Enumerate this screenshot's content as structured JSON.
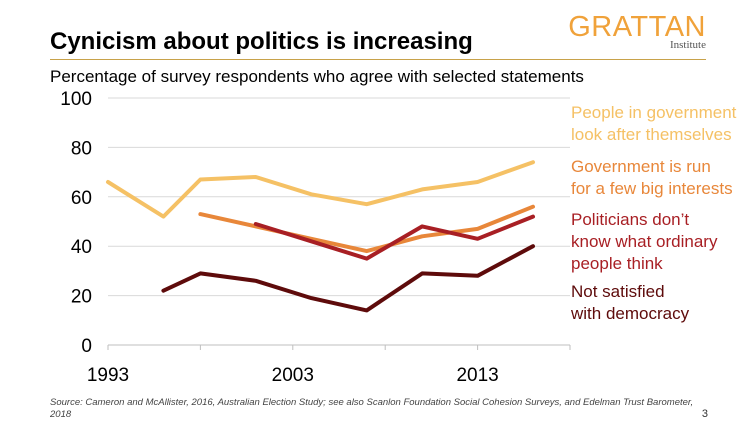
{
  "header": {
    "title": "Cynicism about politics is increasing",
    "subtitle": "Percentage of survey respondents who agree with selected statements",
    "logo_main": "GRATTAN",
    "logo_sub": "Institute"
  },
  "footer": {
    "source": "Source: Cameron and McAllister, 2016, Australian Election Study; see also Scanlon Foundation Social Cohesion Surveys, and Edelman Trust Barometer, 2018",
    "page_number": "3"
  },
  "chart_data": {
    "type": "line",
    "title": "Cynicism about politics is increasing",
    "subtitle": "Percentage of survey respondents who agree with selected statements",
    "xlim": [
      1993,
      2018
    ],
    "ylim": [
      0,
      100
    ],
    "x_ticks": [
      1993,
      2003,
      2013
    ],
    "y_ticks": [
      0,
      20,
      40,
      60,
      80,
      100
    ],
    "grid": "horizontal",
    "legend_placement": "right",
    "series": [
      {
        "name": "People in government look after themselves",
        "color": "#f5c165",
        "x": [
          1993,
          1996,
          1998,
          2001,
          2004,
          2007,
          2010,
          2013,
          2016
        ],
        "values": [
          66,
          52,
          67,
          68,
          61,
          57,
          63,
          66,
          74
        ]
      },
      {
        "name": "Government is run for a few big interests",
        "color": "#e8873a",
        "x": [
          1998,
          2001,
          2004,
          2007,
          2010,
          2013,
          2016
        ],
        "values": [
          53,
          48,
          43,
          38,
          44,
          47,
          56
        ]
      },
      {
        "name": "Politicians don’t know what ordinary people think",
        "color": "#a81f24",
        "x": [
          2001,
          2004,
          2007,
          2010,
          2013,
          2016
        ],
        "values": [
          49,
          42,
          35,
          48,
          43,
          52
        ]
      },
      {
        "name": "Not satisfied with democracy",
        "color": "#5e0b0b",
        "x": [
          1996,
          1998,
          2001,
          2004,
          2007,
          2010,
          2013,
          2016
        ],
        "values": [
          22,
          29,
          26,
          19,
          14,
          29,
          28,
          40
        ]
      }
    ]
  }
}
